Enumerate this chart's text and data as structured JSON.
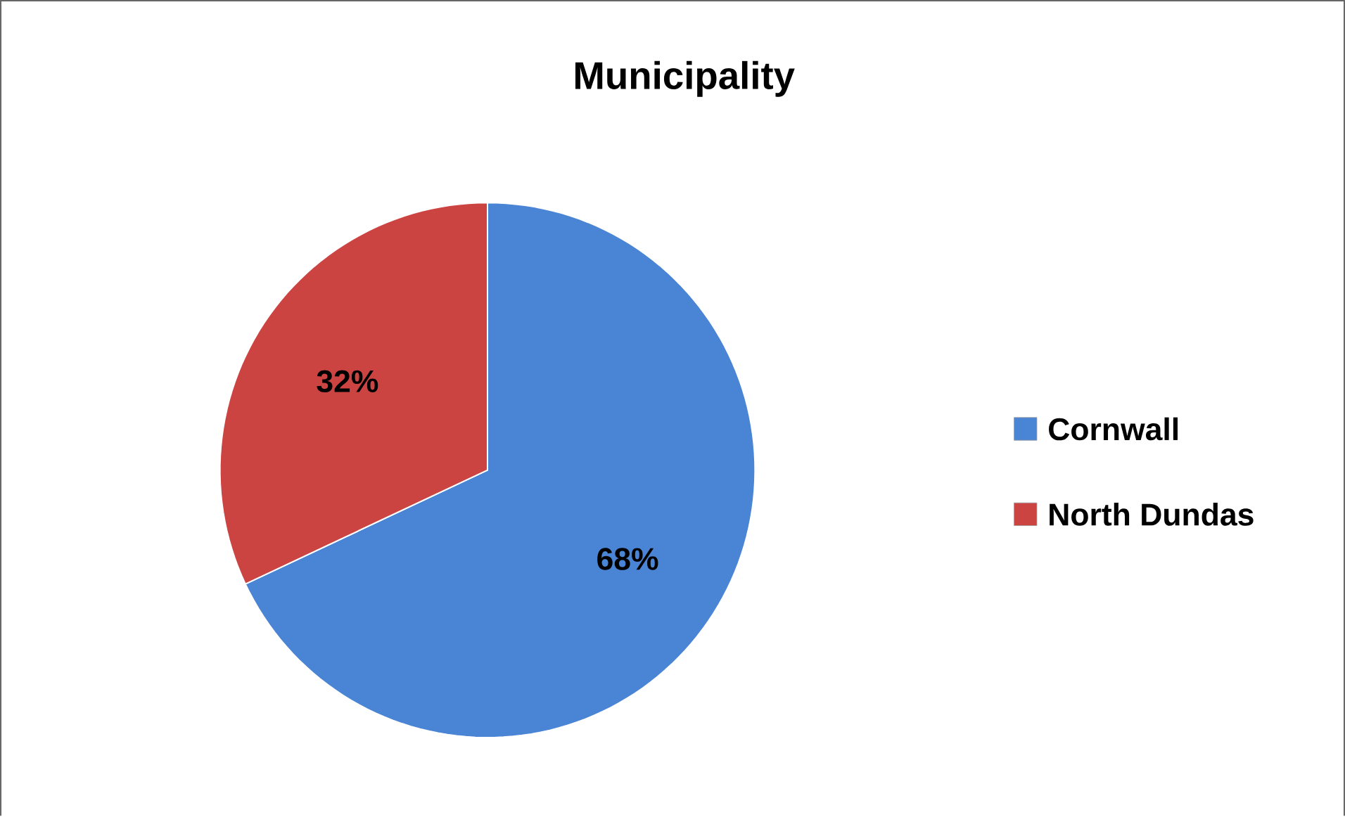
{
  "chart_data": {
    "type": "pie",
    "title": "Municipality",
    "categories": [
      "Cornwall",
      "North Dundas"
    ],
    "values": [
      68,
      32
    ],
    "colors": [
      "#4a84d4",
      "#cc4442"
    ],
    "value_labels": [
      "68%",
      "32%"
    ],
    "legend": "right"
  }
}
